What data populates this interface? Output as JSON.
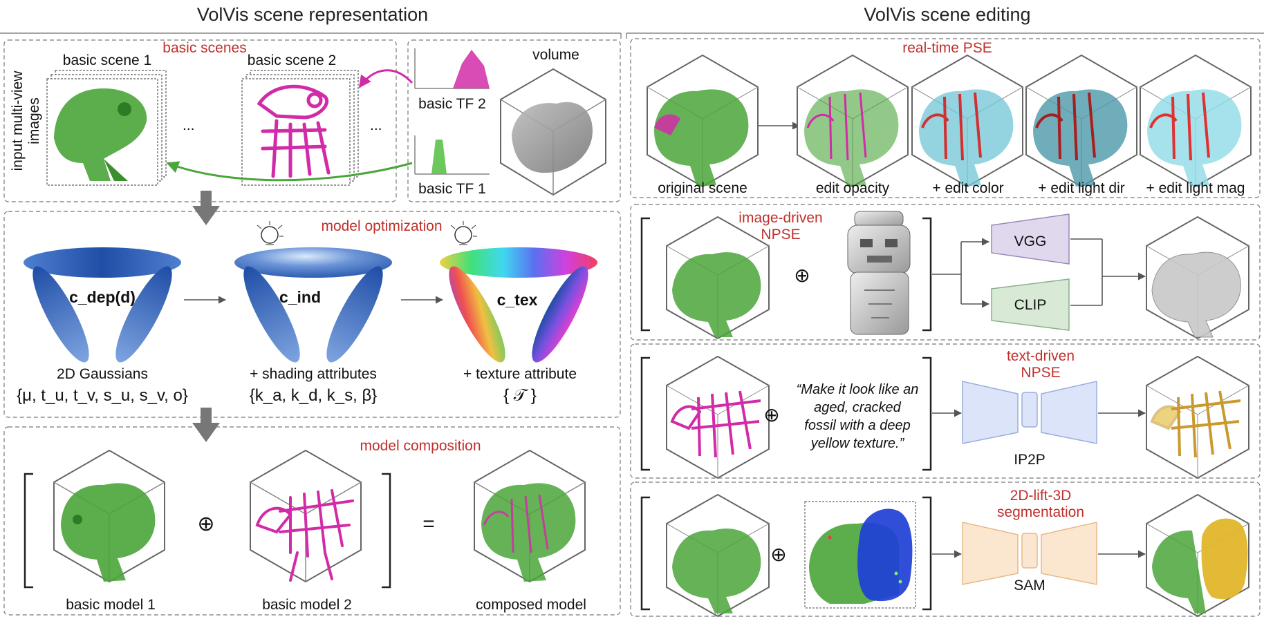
{
  "left": {
    "title": "VolVis scene representation",
    "basic_scenes": {
      "title": "basic scenes",
      "input_label_1": "input multi-view",
      "input_label_2": "images",
      "scene1": "basic scene 1",
      "scene2": "basic scene 2",
      "ellipsis": "..."
    },
    "tf": {
      "tf2": "basic TF 2",
      "tf1": "basic TF 1",
      "volume": "volume"
    },
    "optimization": {
      "title": "model optimization",
      "c_dep": "c_dep(d)",
      "c_ind": "c_ind",
      "c_tex": "c_tex",
      "g1_caption": "2D Gaussians",
      "g1_params": "{μ, t_u, t_v, s_u, s_v, o}",
      "g2_caption": "+ shading attributes",
      "g2_params": "{k_a, k_d, k_s, β}",
      "g3_caption": "+ texture attribute",
      "g3_params": "{ 𝒯 }"
    },
    "composition": {
      "title": "model composition",
      "m1": "basic model 1",
      "m2": "basic model 2",
      "composed": "composed model",
      "oplus": "⊕",
      "equals": "="
    }
  },
  "right": {
    "title": "VolVis scene editing",
    "pse": {
      "title": "real-time PSE",
      "steps": [
        "original scene",
        "edit opacity",
        "+ edit color",
        "+ edit light dir",
        "+ edit light mag"
      ]
    },
    "image_npse": {
      "title_1": "image-driven",
      "title_2": "NPSE",
      "vgg": "VGG",
      "clip": "CLIP",
      "oplus": "⊕"
    },
    "text_npse": {
      "title_1": "text-driven",
      "title_2": "NPSE",
      "quote_lines": [
        "“Make it look like an",
        "aged, cracked",
        "fossil with a deep",
        "yellow texture.”"
      ],
      "model": "IP2P",
      "oplus": "⊕"
    },
    "seg": {
      "title_1": "2D-lift-3D",
      "title_2": "segmentation",
      "model": "SAM",
      "oplus": "⊕"
    }
  },
  "colors": {
    "accent_red": "#c0302b",
    "green": "#4aa53a",
    "magenta": "#d22ba8",
    "blue": "#2f5fb3",
    "cyan": "#6fc6d6",
    "gold": "#e0b62a"
  }
}
